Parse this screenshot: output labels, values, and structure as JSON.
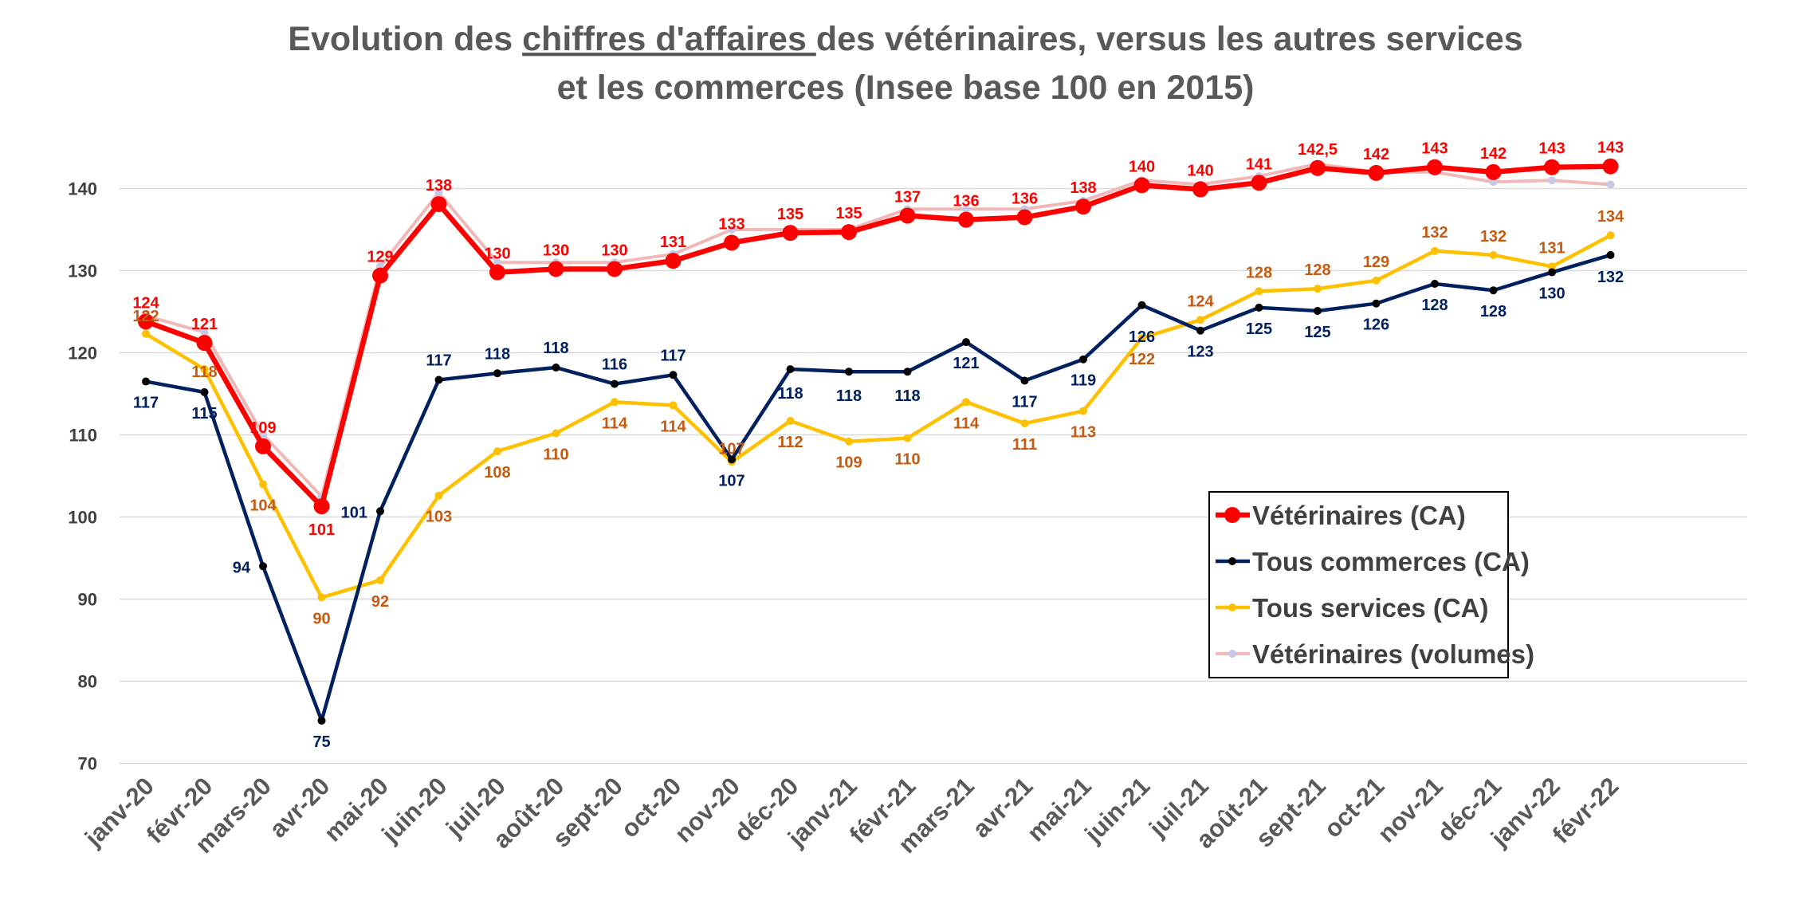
{
  "chart_data": {
    "type": "line",
    "title_parts": [
      "Evolution des ",
      "chiffres d'affaires ",
      "des vétérinaires, versus les autres services"
    ],
    "title_line2": "et les commerces (Insee base 100 en 2015)",
    "categories": [
      "janv-20",
      "févr-20",
      "mars-20",
      "avr-20",
      "mai-20",
      "juin-20",
      "juil-20",
      "août-20",
      "sept-20",
      "oct-20",
      "nov-20",
      "déc-20",
      "janv-21",
      "févr-21",
      "mars-21",
      "avr-21",
      "mai-21",
      "juin-21",
      "juil-21",
      "août-21",
      "sept-21",
      "oct-21",
      "nov-21",
      "déc-21",
      "janv-22",
      "févr-22"
    ],
    "ylim": [
      70,
      145
    ],
    "yticks": [
      70,
      80,
      90,
      100,
      110,
      120,
      130,
      140
    ],
    "grid": true,
    "legend_position": "lower-right",
    "series": [
      {
        "name": "Vétérinaires (volumes)",
        "color": "#f0b8b8",
        "marker_color": "#c8c8e8",
        "values": [
          124.5,
          122.5,
          110,
          102.5,
          130.5,
          139.5,
          131,
          131,
          131,
          132,
          135,
          135,
          135,
          137.5,
          137.5,
          137.5,
          138.5,
          141,
          140.5,
          141.5,
          143,
          142,
          142,
          140.8,
          141,
          140.5
        ],
        "labels": []
      },
      {
        "name": "Tous services  (CA)",
        "color": "#ffc000",
        "label_color": "#c55a11",
        "values": [
          122.3,
          118,
          104,
          90.2,
          92.3,
          102.6,
          108,
          110.2,
          114,
          113.6,
          106.7,
          111.7,
          109.2,
          109.6,
          114,
          111.4,
          112.9,
          121.8,
          124,
          127.5,
          127.8,
          128.8,
          132.4,
          131.9,
          130.5,
          134.3
        ],
        "labels": [
          "122",
          "118",
          "104",
          "90",
          "92",
          "103",
          "108",
          "110",
          "114",
          "114",
          "107",
          "112",
          "109",
          "110",
          "114",
          "111",
          "113",
          "122",
          "124",
          "128",
          "128",
          "129",
          "132",
          "132",
          "131",
          "134"
        ]
      },
      {
        "name": "Tous commerces (CA)",
        "color": "#002060",
        "label_color": "#002060",
        "values": [
          116.5,
          115.2,
          94,
          75.2,
          100.7,
          116.7,
          117.5,
          118.2,
          116.2,
          117.3,
          107,
          118,
          117.7,
          117.7,
          121.3,
          116.6,
          119.2,
          125.8,
          122.7,
          125.5,
          125.1,
          126,
          128.4,
          127.6,
          129.8,
          131.9
        ],
        "labels": [
          "117",
          "115",
          "94",
          "75",
          "101",
          "117",
          "118",
          "118",
          "116",
          "117",
          "107",
          "118",
          "118",
          "118",
          "121",
          "117",
          "119",
          "126",
          "123",
          "125",
          "125",
          "126",
          "128",
          "128",
          "130",
          "132"
        ]
      },
      {
        "name": "Vétérinaires (CA)",
        "color": "#ff0000",
        "label_color": "#ff0000",
        "values": [
          123.8,
          121.2,
          108.6,
          101.3,
          129.4,
          138.1,
          129.8,
          130.2,
          130.2,
          131.2,
          133.4,
          134.6,
          134.7,
          136.7,
          136.2,
          136.5,
          137.8,
          140.4,
          139.9,
          140.7,
          142.5,
          141.9,
          142.6,
          142,
          142.6,
          142.7
        ],
        "labels": [
          "124",
          "121",
          "109",
          "101",
          "129",
          "138",
          "130",
          "130",
          "130",
          "131",
          "133",
          "135",
          "135",
          "137",
          "136",
          "136",
          "138",
          "140",
          "140",
          "141",
          "142,5",
          "142",
          "143",
          "142",
          "143",
          "143"
        ]
      }
    ],
    "legend_order": [
      "Vétérinaires (CA)",
      "Tous commerces (CA)",
      "Tous services  (CA)",
      "Vétérinaires (volumes)"
    ]
  }
}
